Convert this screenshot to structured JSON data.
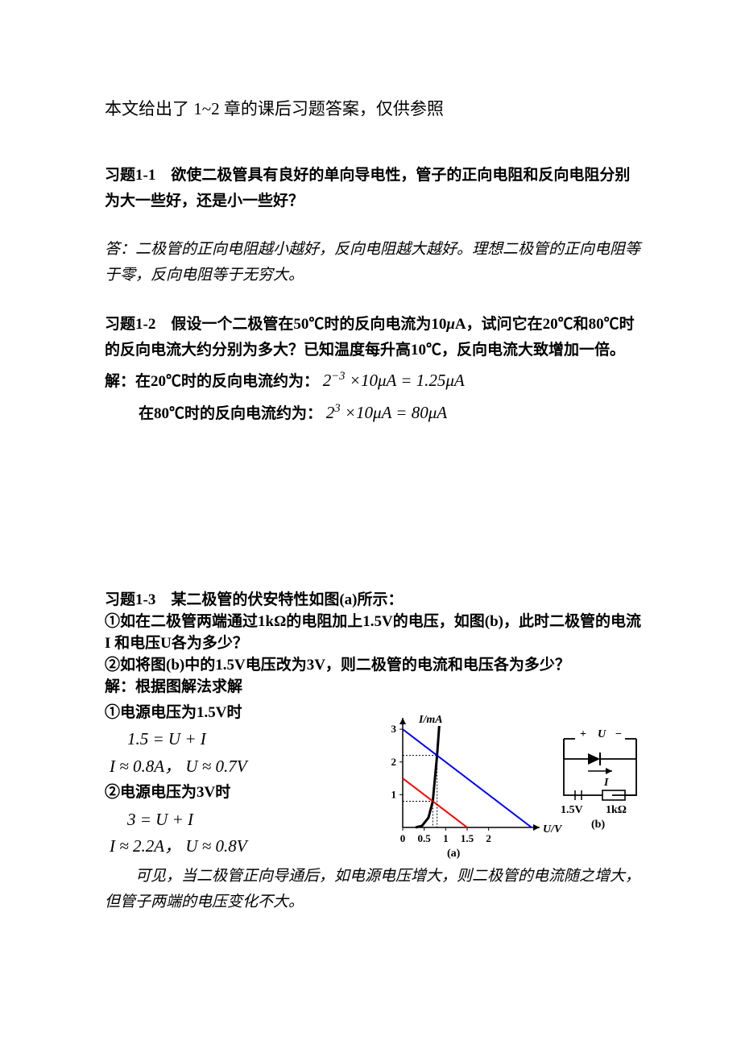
{
  "intro": "本文给出了 1~2 章的课后习题答案，仅供参照",
  "q1": {
    "title": "习题1-1　欲使二极管具有良好的单向导电性，管子的正向电阻和反向电阻分别为大一些好，还是小一些好？",
    "answer": "答：二极管的正向电阻越小越好，反向电阻越大越好。理想二极管的正向电阻等于零，反向电阻等于无穷大。"
  },
  "q2": {
    "title_pre": "习题1-2　假设一个二极管在50℃时的反向电流为10",
    "title_unit": "μ",
    "title_post": "A，试问它在20℃和80℃时的反向电流大约分别为多大？已知温度每升高10℃，反向电流大致增加一倍。",
    "sol_label": "解：在20℃时的反向电流约为：",
    "formula1_lhs": "2",
    "formula1_exp": "−3",
    "formula1_mid": " ×10",
    "formula1_rhs": " = 1.25",
    "sol2_label": "在80℃时的反向电流约为：",
    "formula2_lhs": "2",
    "formula2_exp": "3",
    "formula2_mid": " ×10",
    "formula2_rhs": " = 80",
    "muA": "μA"
  },
  "q3": {
    "title": "习题1-3　某二极管的伏安特性如图(a)所示：",
    "part1": "①如在二极管两端通过1kΩ的电阻加上1.5V的电压，如图(b)，此时二极管的电流 I 和电压U各为多少？",
    "part2": "②如将图(b)中的1.5V电压改为3V，则二极管的电流和电压各为多少？",
    "sol_label": "解：根据图解法求解",
    "case1": "①电源电压为1.5V时",
    "eq1a": "1.5 = U + I",
    "eq1b": "I ≈ 0.8A，  U ≈ 0.7V",
    "case2": "②电源电压为3V时",
    "eq2a": "3 = U + I",
    "eq2b": "I ≈ 2.2A，  U ≈ 0.8V",
    "summary": "可见，当二极管正向导通后，如电源电压增大，则二极管的电流随之增大，但管子两端的电压变化不大。"
  },
  "chart": {
    "type": "line",
    "y_label": "I/mA",
    "x_label": "U/V",
    "caption_a": "(a)",
    "caption_b": "(b)",
    "x_ticks": [
      "0",
      "0.5",
      "1",
      "1.5",
      "2"
    ],
    "y_ticks": [
      "1",
      "2",
      "3"
    ],
    "diode_color": "#000000",
    "line1_color": "#ff0000",
    "line2_color": "#0000ff",
    "guide_color": "#000000",
    "axis_color": "#000000",
    "background": "#ffffff",
    "xlim": [
      0,
      3
    ],
    "ylim": [
      0,
      3.2
    ],
    "diode_curve": [
      [
        0.3,
        0.0
      ],
      [
        0.45,
        0.05
      ],
      [
        0.6,
        0.3
      ],
      [
        0.7,
        0.8
      ],
      [
        0.8,
        2.2
      ],
      [
        0.85,
        3.1
      ]
    ],
    "load_line_15": [
      [
        0,
        1.5
      ],
      [
        1.5,
        0
      ]
    ],
    "load_line_3": [
      [
        0,
        3.0
      ],
      [
        3.0,
        0
      ]
    ],
    "intersection1": [
      0.7,
      0.8
    ],
    "intersection2": [
      0.8,
      2.2
    ]
  },
  "circuit": {
    "U_label": "U",
    "plus": "+",
    "minus": "−",
    "I_label": "I",
    "src_label": "1.5V",
    "R_label": "1kΩ"
  }
}
